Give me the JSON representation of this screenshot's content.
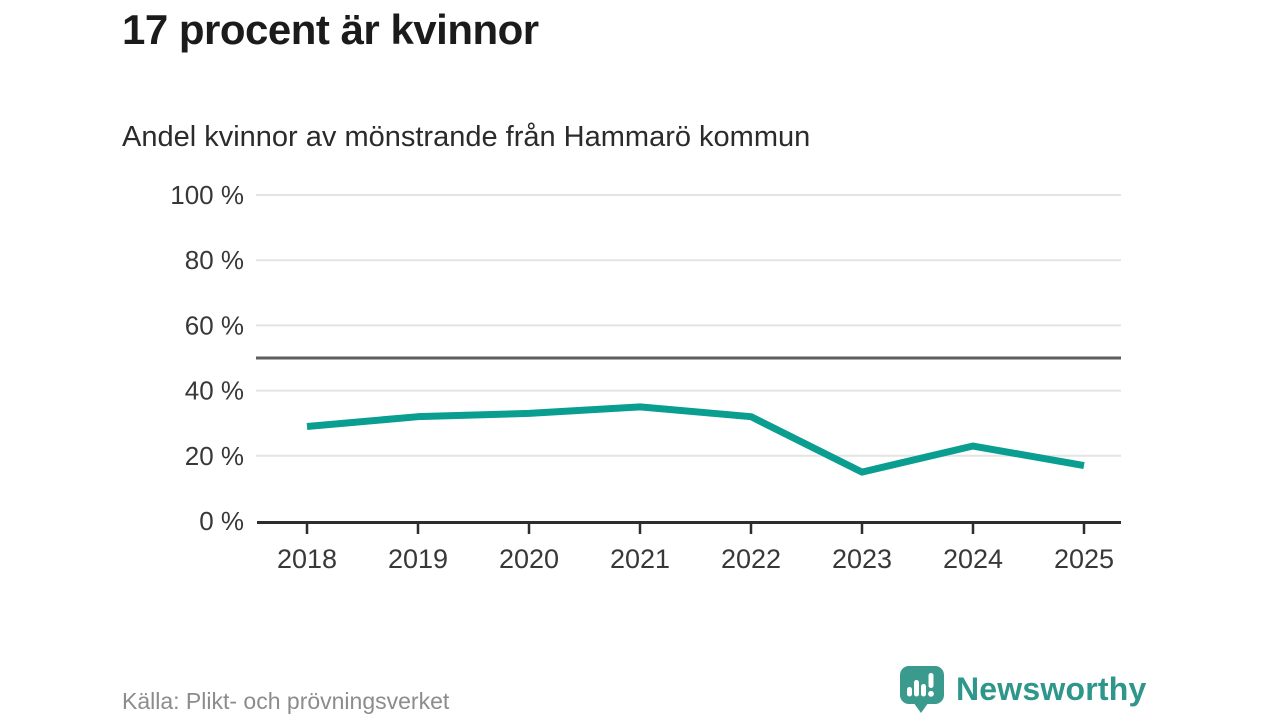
{
  "header": {
    "title": "17 procent är kvinnor",
    "subtitle": "Andel kvinnor av mönstrande från Hammarö kommun"
  },
  "chart_data": {
    "type": "line",
    "title": "Andel kvinnor av mönstrande från Hammarö kommun",
    "x": [
      2018,
      2019,
      2020,
      2021,
      2022,
      2023,
      2024,
      2025
    ],
    "series": [
      {
        "name": "Andel kvinnor",
        "values": [
          29,
          32,
          33,
          35,
          32,
          15,
          23,
          17
        ]
      }
    ],
    "xlabel": "",
    "ylabel": "",
    "ylim": [
      0,
      100
    ],
    "yticks": [
      0,
      20,
      40,
      60,
      80,
      100
    ],
    "ytick_suffix": " %",
    "reference_line": 50,
    "grid": true,
    "legend_position": "none",
    "line_color": "#0a9e91",
    "grid_color": "#e4e4e4",
    "reference_line_color": "#5e5e5e",
    "axis_color": "#2d2d2d",
    "tick_label_color": "#383838"
  },
  "footer": {
    "source": "Källa: Plikt- och prövningsverket",
    "logo_text": "Newsworthy"
  },
  "colors": {
    "accent_teal": "#0a9e91",
    "logo_teal": "#3a9a8e",
    "logo_text_teal": "#2e968b",
    "title_color": "#1b1b1b",
    "source_gray": "#8c8c8c"
  }
}
